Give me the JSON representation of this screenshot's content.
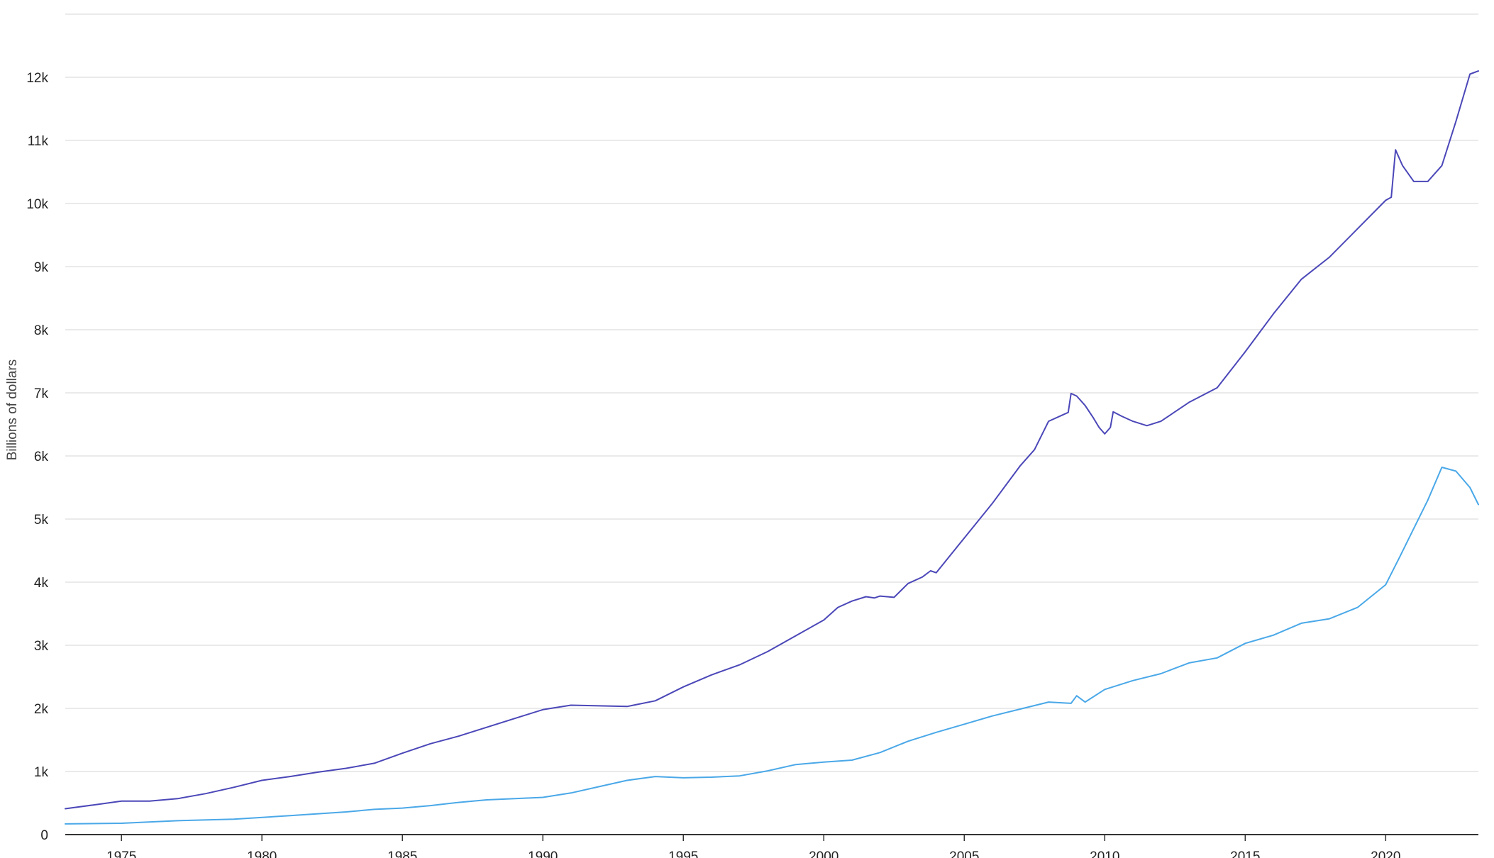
{
  "chart_data": {
    "type": "line",
    "title": "",
    "xlabel": "",
    "ylabel": "Billions of dollars",
    "xlim": [
      1973.0,
      2023.3
    ],
    "ylim": [
      0,
      13000
    ],
    "x_ticks": [
      {
        "value": 1975,
        "label": "1975"
      },
      {
        "value": 1980,
        "label": "1980"
      },
      {
        "value": 1985,
        "label": "1985"
      },
      {
        "value": 1990,
        "label": "1990"
      },
      {
        "value": 1995,
        "label": "1995"
      },
      {
        "value": 2000,
        "label": "2000"
      },
      {
        "value": 2005,
        "label": "2005"
      },
      {
        "value": 2010,
        "label": "2010"
      },
      {
        "value": 2015,
        "label": "2015"
      },
      {
        "value": 2020,
        "label": "2020"
      }
    ],
    "y_ticks": [
      {
        "value": 0,
        "label": "0"
      },
      {
        "value": 1000,
        "label": "1k"
      },
      {
        "value": 2000,
        "label": "2k"
      },
      {
        "value": 3000,
        "label": "3k"
      },
      {
        "value": 4000,
        "label": "4k"
      },
      {
        "value": 5000,
        "label": "5k"
      },
      {
        "value": 6000,
        "label": "6k"
      },
      {
        "value": 7000,
        "label": "7k"
      },
      {
        "value": 8000,
        "label": "8k"
      },
      {
        "value": 9000,
        "label": "9k"
      },
      {
        "value": 10000,
        "label": "10k"
      },
      {
        "value": 11000,
        "label": "11k"
      },
      {
        "value": 12000,
        "label": "12k"
      },
      {
        "value": 13000,
        "label": ""
      }
    ],
    "grid": true,
    "series": [
      {
        "color": "#4b47b8",
        "points": [
          [
            1973.0,
            410
          ],
          [
            1974.0,
            470
          ],
          [
            1975.0,
            530
          ],
          [
            1976.0,
            530
          ],
          [
            1977.0,
            570
          ],
          [
            1978.0,
            650
          ],
          [
            1979.0,
            750
          ],
          [
            1980.0,
            860
          ],
          [
            1981.0,
            920
          ],
          [
            1982.0,
            990
          ],
          [
            1983.0,
            1050
          ],
          [
            1984.0,
            1130
          ],
          [
            1985.0,
            1290
          ],
          [
            1986.0,
            1440
          ],
          [
            1987.0,
            1560
          ],
          [
            1988.0,
            1700
          ],
          [
            1989.0,
            1840
          ],
          [
            1990.0,
            1980
          ],
          [
            1991.0,
            2050
          ],
          [
            1992.0,
            2040
          ],
          [
            1993.0,
            2030
          ],
          [
            1994.0,
            2120
          ],
          [
            1995.0,
            2340
          ],
          [
            1996.0,
            2530
          ],
          [
            1997.0,
            2690
          ],
          [
            1998.0,
            2900
          ],
          [
            1999.0,
            3150
          ],
          [
            2000.0,
            3400
          ],
          [
            2000.5,
            3600
          ],
          [
            2001.0,
            3700
          ],
          [
            2001.5,
            3770
          ],
          [
            2001.8,
            3750
          ],
          [
            2002.0,
            3780
          ],
          [
            2002.5,
            3760
          ],
          [
            2003.0,
            3980
          ],
          [
            2003.5,
            4080
          ],
          [
            2003.8,
            4180
          ],
          [
            2004.0,
            4150
          ],
          [
            2005.0,
            4700
          ],
          [
            2006.0,
            5250
          ],
          [
            2007.0,
            5850
          ],
          [
            2007.5,
            6100
          ],
          [
            2008.0,
            6550
          ],
          [
            2008.5,
            6650
          ],
          [
            2008.7,
            6690
          ],
          [
            2008.8,
            6990
          ],
          [
            2009.0,
            6950
          ],
          [
            2009.3,
            6800
          ],
          [
            2009.6,
            6600
          ],
          [
            2009.8,
            6450
          ],
          [
            2010.0,
            6350
          ],
          [
            2010.2,
            6450
          ],
          [
            2010.3,
            6700
          ],
          [
            2010.6,
            6630
          ],
          [
            2011.0,
            6550
          ],
          [
            2011.5,
            6480
          ],
          [
            2012.0,
            6550
          ],
          [
            2013.0,
            6850
          ],
          [
            2014.0,
            7080
          ],
          [
            2015.0,
            7650
          ],
          [
            2016.0,
            8250
          ],
          [
            2017.0,
            8800
          ],
          [
            2018.0,
            9150
          ],
          [
            2019.0,
            9600
          ],
          [
            2020.0,
            10050
          ],
          [
            2020.2,
            10100
          ],
          [
            2020.35,
            10850
          ],
          [
            2020.6,
            10600
          ],
          [
            2021.0,
            10350
          ],
          [
            2021.5,
            10350
          ],
          [
            2022.0,
            10600
          ],
          [
            2022.5,
            11300
          ],
          [
            2023.0,
            12050
          ],
          [
            2023.3,
            12100
          ]
        ]
      },
      {
        "color": "#4aa8e8",
        "points": [
          [
            1973.0,
            170
          ],
          [
            1975.0,
            180
          ],
          [
            1977.0,
            220
          ],
          [
            1979.0,
            245
          ],
          [
            1981.0,
            300
          ],
          [
            1983.0,
            360
          ],
          [
            1984.0,
            400
          ],
          [
            1985.0,
            420
          ],
          [
            1986.0,
            460
          ],
          [
            1987.0,
            510
          ],
          [
            1988.0,
            550
          ],
          [
            1989.0,
            570
          ],
          [
            1990.0,
            590
          ],
          [
            1991.0,
            660
          ],
          [
            1992.0,
            760
          ],
          [
            1993.0,
            860
          ],
          [
            1994.0,
            920
          ],
          [
            1995.0,
            900
          ],
          [
            1996.0,
            910
          ],
          [
            1997.0,
            930
          ],
          [
            1998.0,
            1010
          ],
          [
            1999.0,
            1110
          ],
          [
            2000.0,
            1150
          ],
          [
            2001.0,
            1180
          ],
          [
            2002.0,
            1300
          ],
          [
            2003.0,
            1480
          ],
          [
            2004.0,
            1620
          ],
          [
            2005.0,
            1750
          ],
          [
            2006.0,
            1880
          ],
          [
            2007.0,
            1990
          ],
          [
            2008.0,
            2100
          ],
          [
            2008.8,
            2080
          ],
          [
            2009.0,
            2200
          ],
          [
            2009.3,
            2100
          ],
          [
            2010.0,
            2300
          ],
          [
            2011.0,
            2440
          ],
          [
            2012.0,
            2550
          ],
          [
            2013.0,
            2720
          ],
          [
            2014.0,
            2800
          ],
          [
            2015.0,
            3030
          ],
          [
            2016.0,
            3160
          ],
          [
            2017.0,
            3350
          ],
          [
            2018.0,
            3420
          ],
          [
            2019.0,
            3600
          ],
          [
            2020.0,
            3960
          ],
          [
            2020.5,
            4400
          ],
          [
            2021.0,
            4850
          ],
          [
            2021.5,
            5300
          ],
          [
            2022.0,
            5820
          ],
          [
            2022.5,
            5760
          ],
          [
            2023.0,
            5500
          ],
          [
            2023.3,
            5230
          ]
        ]
      }
    ]
  }
}
